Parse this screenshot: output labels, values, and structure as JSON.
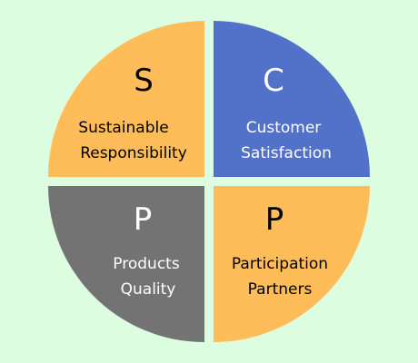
{
  "diagram": {
    "quadrants": [
      {
        "id": "top-left",
        "letter": "S",
        "line1": "Sustainable",
        "line2": "Responsibility",
        "fill": "#ffbd59",
        "text_color": "#000000"
      },
      {
        "id": "top-right",
        "letter": "C",
        "line1": "Customer",
        "line2": "Satisfaction",
        "fill": "#5271c8",
        "text_color": "#ffffff"
      },
      {
        "id": "bottom-left",
        "letter": "P",
        "line1": "Products",
        "line2": "Quality",
        "fill": "#737373",
        "text_color": "#ffffff"
      },
      {
        "id": "bottom-right",
        "letter": "P",
        "line1": "Participation",
        "line2": "Partners",
        "fill": "#ffbd59",
        "text_color": "#000000"
      }
    ],
    "background": "#ddfde1"
  }
}
